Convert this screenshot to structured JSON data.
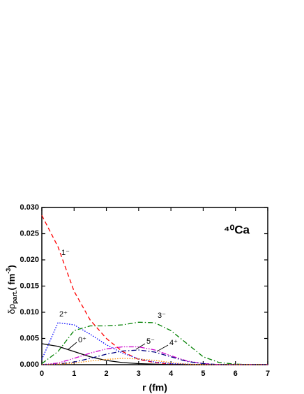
{
  "chart_data": {
    "type": "line",
    "annotation": "⁴⁰Ca",
    "x_label": "r (fm)",
    "y_label": [
      "δρ",
      "part.",
      "( fm",
      "-3",
      ")"
    ],
    "x": [
      0,
      0.5,
      1,
      1.5,
      2,
      2.5,
      3,
      3.5,
      4,
      4.5,
      5,
      5.5,
      6,
      6.5,
      7
    ],
    "xlim": [
      0,
      7
    ],
    "xticks": [
      0,
      1,
      2,
      3,
      4,
      5,
      6,
      7
    ],
    "ylim": [
      0,
      0.03
    ],
    "yticks": [
      {
        "value": 0,
        "label": "0.000"
      },
      {
        "value": 0.005,
        "label": "0.005"
      },
      {
        "value": 0.01,
        "label": "0.010"
      },
      {
        "value": 0.015,
        "label": "0.015"
      },
      {
        "value": 0.02,
        "label": "0.020"
      },
      {
        "value": 0.025,
        "label": "0.025"
      },
      {
        "value": 0.03,
        "label": "0.030"
      }
    ],
    "series": [
      {
        "name": "1⁻",
        "color": "#ff0000",
        "dash": "dashed",
        "values": [
          0.0285,
          0.0225,
          0.014,
          0.0085,
          0.005,
          0.0025,
          0.001,
          0.0004,
          0.0001,
          0,
          0,
          0,
          0,
          0,
          0
        ]
      },
      {
        "name": "2⁺",
        "color": "#0000ff",
        "dash": "dotted",
        "values": [
          0.001,
          0.008,
          0.0076,
          0.0058,
          0.0038,
          0.0022,
          0.0011,
          0.0005,
          0.0002,
          0.0001,
          0,
          0,
          0,
          0,
          0
        ]
      },
      {
        "name": "3⁻",
        "color": "#008000",
        "dash": "dashdot",
        "values": [
          0.0002,
          0.0025,
          0.0065,
          0.0074,
          0.0074,
          0.0076,
          0.0081,
          0.008,
          0.0065,
          0.004,
          0.0015,
          0.0004,
          0.0001,
          0,
          0
        ]
      },
      {
        "name": "0⁺",
        "color": "#000000",
        "dash": "solid",
        "values": [
          0.004,
          0.0035,
          0.0025,
          0.0015,
          0.0008,
          0.0004,
          0.0002,
          0.0001,
          0,
          0,
          0,
          0,
          0,
          0,
          0
        ]
      },
      {
        "name": "5⁻",
        "color": "#cc00cc",
        "dash": "dashdotdot",
        "values": [
          0,
          0.0003,
          0.0012,
          0.0022,
          0.003,
          0.0034,
          0.0034,
          0.0028,
          0.0017,
          0.0007,
          0.0002,
          0,
          0,
          0,
          0
        ]
      },
      {
        "name": "4⁺",
        "color": "#000080",
        "dash": "dashdot",
        "values": [
          0,
          0.0001,
          0.0005,
          0.0012,
          0.002,
          0.0026,
          0.0028,
          0.0024,
          0.0015,
          0.0006,
          0.0002,
          0,
          0,
          0,
          0
        ]
      },
      {
        "color": "#ff8c00",
        "dash": "dotted",
        "values": [
          0,
          0.0001,
          0.0003,
          0.0007,
          0.001,
          0.0012,
          0.0011,
          0.0008,
          0.0004,
          0.0001,
          0,
          0,
          0,
          0,
          0
        ]
      }
    ]
  }
}
